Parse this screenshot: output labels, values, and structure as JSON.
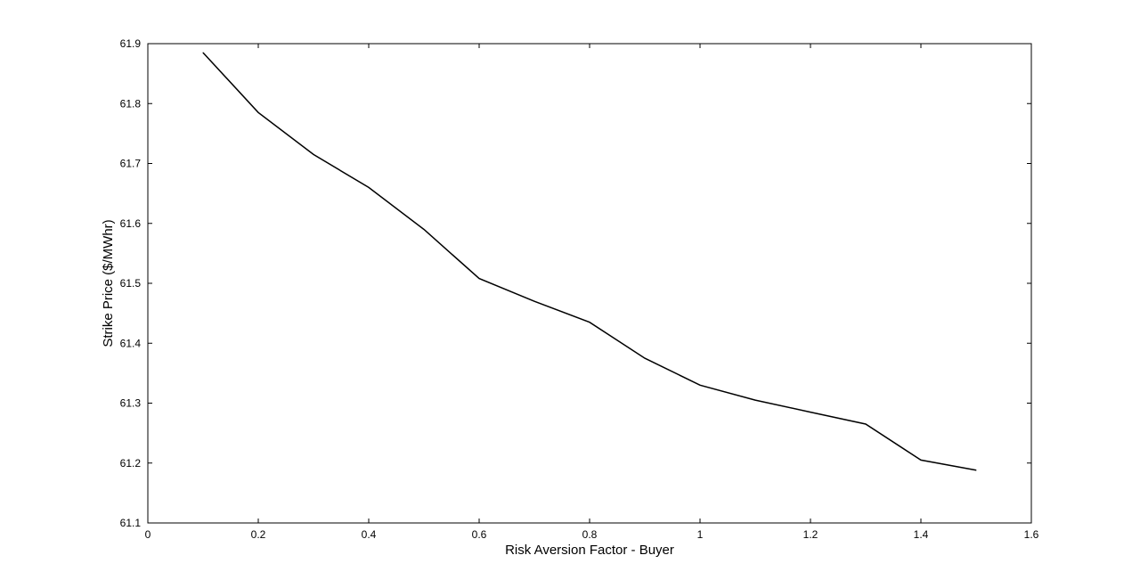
{
  "chart_data": {
    "type": "line",
    "title": "",
    "xlabel": "Risk Aversion Factor - Buyer",
    "ylabel": "Strike Price ($/MWhr)",
    "xlim": [
      0,
      1.6
    ],
    "ylim": [
      61.1,
      61.9
    ],
    "xticks": [
      "0",
      "0.2",
      "0.4",
      "0.6",
      "0.8",
      "1",
      "1.2",
      "1.4",
      "1.6"
    ],
    "yticks": [
      "61.1",
      "61.2",
      "61.3",
      "61.4",
      "61.5",
      "61.6",
      "61.7",
      "61.8",
      "61.9"
    ],
    "grid": false,
    "line_color": "#000000",
    "series": [
      {
        "x": [
          0.1,
          0.2,
          0.3,
          0.4,
          0.5,
          0.6,
          0.7,
          0.8,
          0.9,
          1.0,
          1.1,
          1.2,
          1.3,
          1.4,
          1.5
        ],
        "y": [
          61.885,
          61.785,
          61.715,
          61.66,
          61.59,
          61.508,
          61.47,
          61.435,
          61.375,
          61.33,
          61.305,
          61.285,
          61.265,
          61.205,
          61.188
        ]
      }
    ]
  }
}
